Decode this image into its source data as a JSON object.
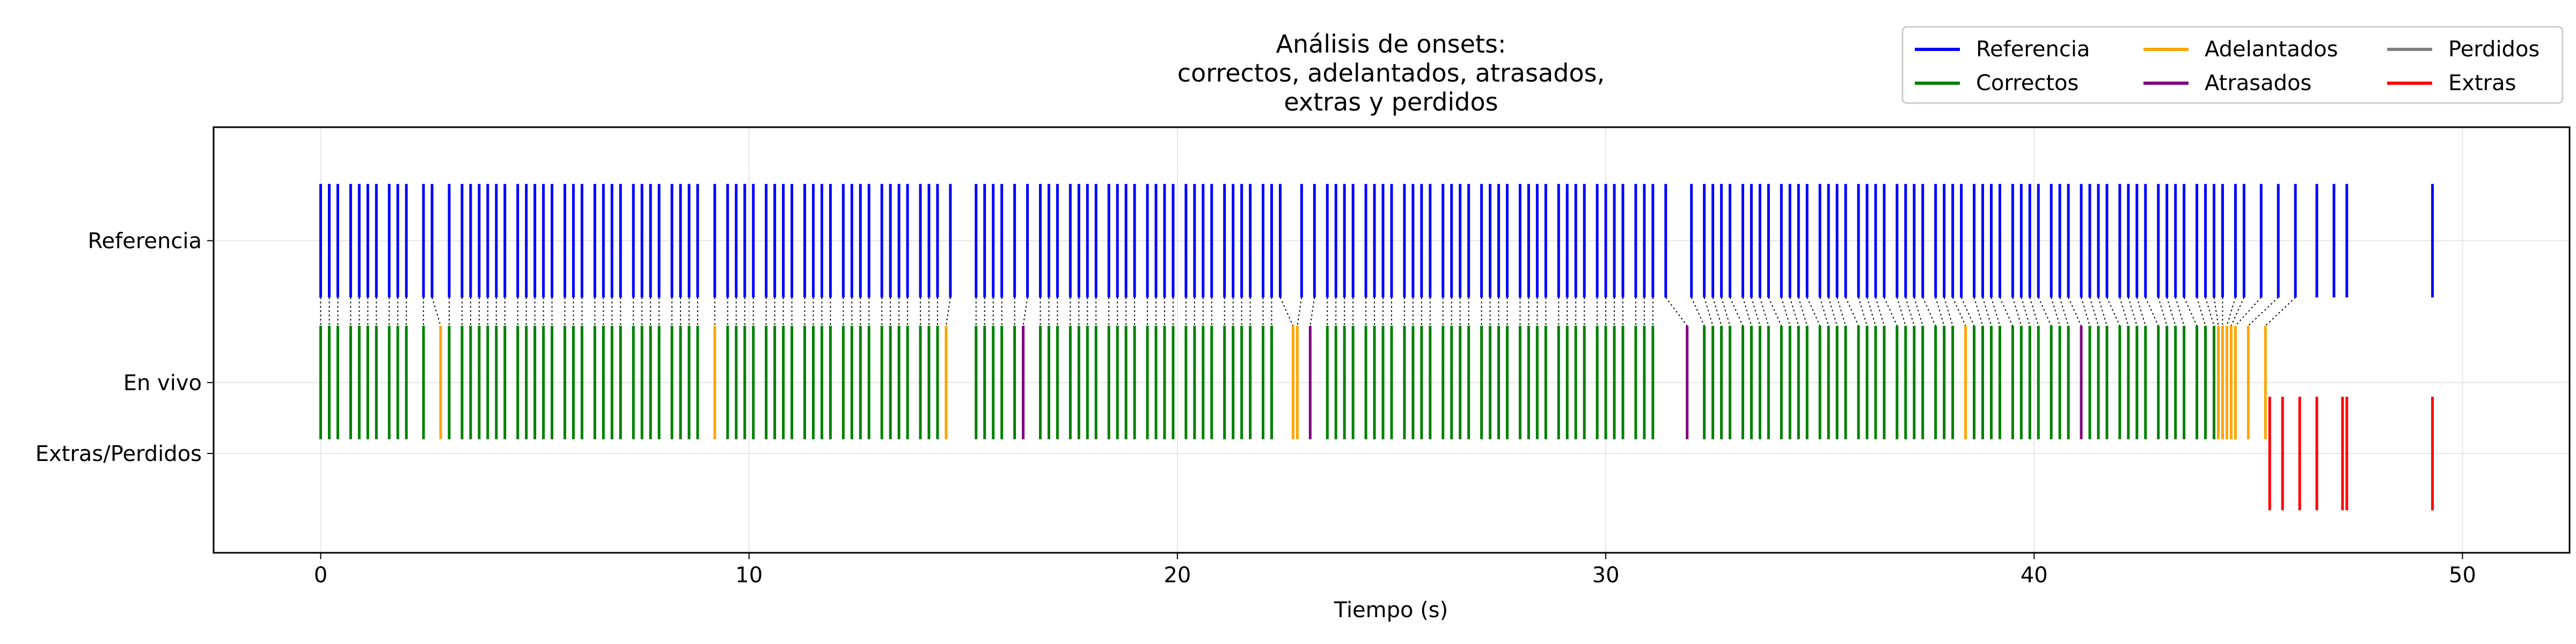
{
  "chart_data": {
    "type": "event-raster",
    "title_lines": [
      "Análisis de onsets:",
      "correctos, adelantados, atrasados,",
      "extras y perdidos"
    ],
    "xlabel": "Tiempo (s)",
    "xlim": [
      -2.5,
      52.5
    ],
    "x_ticks": [
      0,
      10,
      20,
      30,
      40,
      50
    ],
    "grid": true,
    "rows": [
      {
        "key": "reference",
        "label": "Referencia",
        "y": 2.2
      },
      {
        "key": "live",
        "label": "En vivo",
        "y": 1.2
      },
      {
        "key": "extras_missed",
        "label": "Extras/Perdidos",
        "y": 0.7
      }
    ],
    "legend": {
      "placement": "top-right",
      "columns": 3,
      "entries": [
        {
          "label": "Referencia",
          "color": "#0000ff"
        },
        {
          "label": "Correctos",
          "color": "#008000"
        },
        {
          "label": "Adelantados",
          "color": "#ffa500"
        },
        {
          "label": "Atrasados",
          "color": "#800080"
        },
        {
          "label": "Perdidos",
          "color": "#808080"
        },
        {
          "label": "Extras",
          "color": "#ff0000"
        }
      ]
    },
    "colors": {
      "reference": "#0000ff",
      "correct": "#008000",
      "early": "#ffa500",
      "late": "#800080",
      "missed": "#808080",
      "extra": "#ff0000"
    },
    "series": [
      {
        "name": "Referencia",
        "row": "reference",
        "times": [
          0,
          0.2,
          0.4,
          0.7,
          0.9,
          1.1,
          1.3,
          1.6,
          1.8,
          2,
          2.4,
          2.6,
          3,
          3.3,
          3.5,
          3.7,
          3.9,
          4.1,
          4.3,
          4.6,
          4.8,
          5,
          5.2,
          5.4,
          5.7,
          5.9,
          6.1,
          6.4,
          6.6,
          6.8,
          7,
          7.3,
          7.5,
          7.7,
          7.9,
          8.2,
          8.4,
          8.6,
          8.8,
          9.2,
          9.5,
          9.7,
          9.9,
          10.1,
          10.4,
          10.6,
          10.8,
          11,
          11.3,
          11.5,
          11.7,
          11.9,
          12.2,
          12.4,
          12.6,
          12.8,
          13.1,
          13.3,
          13.5,
          13.7,
          14,
          14.2,
          14.4,
          14.7,
          15.3,
          15.5,
          15.7,
          15.9,
          16.2,
          16.5,
          16.8,
          17,
          17.2,
          17.5,
          17.7,
          17.9,
          18.1,
          18.4,
          18.6,
          18.8,
          19,
          19.3,
          19.5,
          19.7,
          19.9,
          20.2,
          20.4,
          20.6,
          20.8,
          21.1,
          21.3,
          21.5,
          21.7,
          22,
          22.2,
          22.4,
          22.9,
          23.2,
          23.5,
          23.7,
          23.9,
          24.1,
          24.4,
          24.6,
          24.8,
          25,
          25.3,
          25.5,
          25.7,
          25.9,
          26.2,
          26.4,
          26.6,
          26.8,
          27.1,
          27.3,
          27.5,
          27.7,
          28,
          28.2,
          28.4,
          28.6,
          28.9,
          29.1,
          29.3,
          29.5,
          29.8,
          30,
          30.2,
          30.4,
          30.7,
          30.9,
          31.1,
          31.4,
          32,
          32.3,
          32.5,
          32.7,
          32.9,
          33.2,
          33.4,
          33.6,
          33.8,
          34.1,
          34.3,
          34.5,
          34.7,
          35,
          35.2,
          35.4,
          35.6,
          35.9,
          36.1,
          36.3,
          36.5,
          36.8,
          37,
          37.2,
          37.4,
          37.7,
          37.9,
          38.1,
          38.3,
          38.6,
          38.8,
          39,
          39.2,
          39.5,
          39.7,
          39.9,
          40.1,
          40.4,
          40.6,
          40.8,
          41.1,
          41.3,
          41.5,
          41.7,
          42,
          42.2,
          42.4,
          42.6,
          42.9,
          43.1,
          43.3,
          43.5,
          43.8,
          44,
          44.2,
          44.4,
          44.7,
          44.9,
          45.3,
          45.7,
          46.1,
          46.6,
          47,
          47.3,
          49.3
        ]
      },
      {
        "name": "Correctos",
        "row": "live",
        "times": [
          0,
          0.2,
          0.4,
          0.7,
          0.9,
          1.1,
          1.3,
          1.6,
          1.8,
          2,
          2.4,
          3,
          3.3,
          3.5,
          3.7,
          3.9,
          4.1,
          4.3,
          4.6,
          4.8,
          5,
          5.2,
          5.4,
          5.7,
          5.9,
          6.1,
          6.4,
          6.6,
          6.8,
          7,
          7.3,
          7.5,
          7.7,
          7.9,
          8.2,
          8.4,
          8.6,
          8.8,
          9.5,
          9.7,
          9.9,
          10.1,
          10.4,
          10.6,
          10.8,
          11,
          11.3,
          11.5,
          11.7,
          11.9,
          12.2,
          12.4,
          12.6,
          12.8,
          13.1,
          13.3,
          13.5,
          13.7,
          14,
          14.2,
          14.4,
          15.3,
          15.5,
          15.7,
          15.9,
          16.2,
          16.8,
          17,
          17.2,
          17.5,
          17.7,
          17.9,
          18.1,
          18.4,
          18.6,
          18.8,
          19,
          19.3,
          19.5,
          19.7,
          19.9,
          20.2,
          20.4,
          20.6,
          20.8,
          21.1,
          21.3,
          21.5,
          21.7,
          22,
          22.2,
          23.5,
          23.7,
          23.9,
          24.1,
          24.4,
          24.6,
          24.8,
          25,
          25.3,
          25.5,
          25.7,
          25.9,
          26.2,
          26.4,
          26.6,
          26.8,
          27.1,
          27.3,
          27.5,
          27.7,
          28,
          28.2,
          28.4,
          28.6,
          28.9,
          29.1,
          29.3,
          29.5,
          29.8,
          30,
          30.2,
          30.4,
          30.7,
          30.9,
          31.1,
          32.3,
          32.5,
          32.7,
          32.9,
          33.2,
          33.4,
          33.6,
          33.8,
          34.1,
          34.3,
          34.5,
          34.7,
          35,
          35.2,
          35.4,
          35.6,
          35.9,
          36.1,
          36.3,
          36.5,
          36.8,
          37,
          37.2,
          37.4,
          37.7,
          37.9,
          38.1,
          38.6,
          38.8,
          39,
          39.2,
          39.5,
          39.7,
          39.9,
          40.1,
          40.4,
          40.6,
          40.8,
          41.3,
          41.5,
          41.7,
          42,
          42.2,
          42.4,
          42.6,
          42.9,
          43.1,
          43.3,
          43.5,
          43.8,
          44,
          44.2
        ]
      },
      {
        "name": "Adelantados",
        "row": "live",
        "times": [
          2.8,
          9.2,
          14.6,
          22.7,
          22.8,
          38.4,
          44.3,
          44.4,
          44.5,
          44.6,
          44.7,
          45.0,
          45.4
        ]
      },
      {
        "name": "Atrasados",
        "row": "live",
        "times": [
          16.4,
          23.1,
          31.9,
          41.1
        ]
      },
      {
        "name": "Extras",
        "row": "extras_missed",
        "times": [
          45.5,
          45.8,
          46.2,
          46.6,
          47.2,
          47.3,
          49.3
        ]
      }
    ]
  }
}
